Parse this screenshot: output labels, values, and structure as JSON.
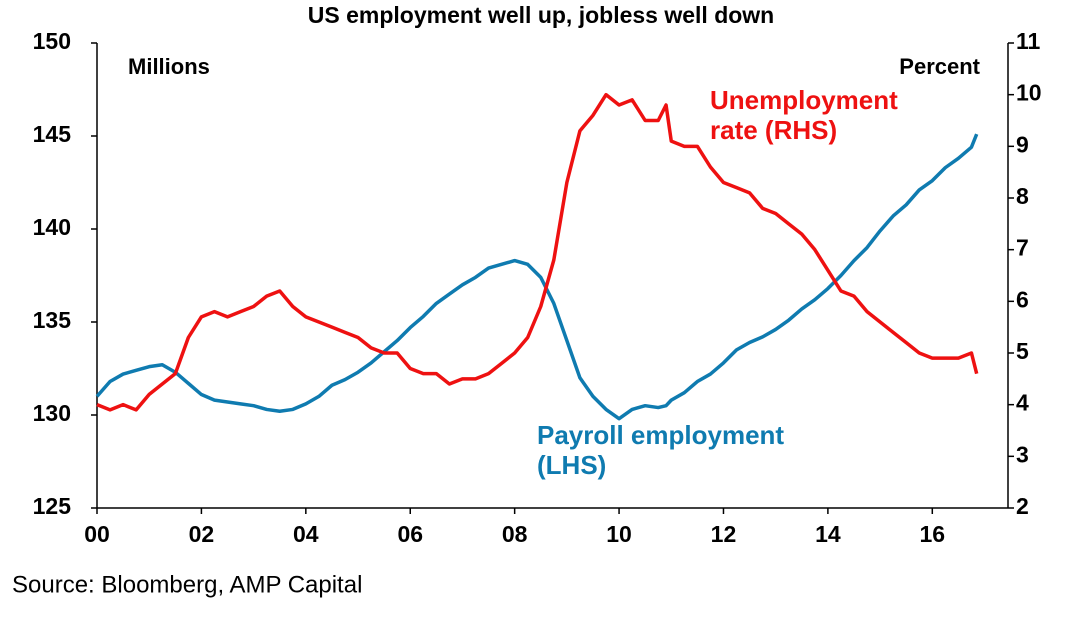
{
  "chart_data": {
    "type": "line",
    "title": "US employment well up, jobless well down",
    "y_label": "Millions",
    "y2_label": "Percent",
    "source": "Source: Bloomberg, AMP Capital",
    "x": [
      0,
      0.25,
      0.5,
      0.75,
      1,
      1.25,
      1.5,
      1.75,
      2,
      2.25,
      2.5,
      2.75,
      3,
      3.25,
      3.5,
      3.75,
      4,
      4.25,
      4.5,
      4.75,
      5,
      5.25,
      5.5,
      5.75,
      6,
      6.25,
      6.5,
      6.75,
      7,
      7.25,
      7.5,
      7.75,
      8,
      8.25,
      8.5,
      8.75,
      9,
      9.25,
      9.5,
      9.75,
      10,
      10.25,
      10.5,
      10.75,
      10.9,
      11,
      11.25,
      11.5,
      11.75,
      12,
      12.25,
      12.5,
      12.75,
      13,
      13.25,
      13.5,
      13.75,
      14,
      14.25,
      14.5,
      14.75,
      15,
      15.25,
      15.5,
      15.75,
      16,
      16.25,
      16.5,
      16.75,
      16.85
    ],
    "xlim": [
      0,
      17.45
    ],
    "xticks": [
      {
        "value": 0,
        "label": "00"
      },
      {
        "value": 2,
        "label": "02"
      },
      {
        "value": 4,
        "label": "04"
      },
      {
        "value": 6,
        "label": "06"
      },
      {
        "value": 8,
        "label": "08"
      },
      10,
      12,
      14,
      16
    ],
    "ylim": [
      125,
      150
    ],
    "yticks": [
      125,
      130,
      135,
      140,
      145,
      150
    ],
    "y2lim": [
      2,
      11
    ],
    "y2ticks": [
      2,
      3,
      4,
      5,
      6,
      7,
      8,
      9,
      10,
      11
    ],
    "series": [
      {
        "name": [
          "Payroll employment",
          "(LHS)"
        ],
        "color": "#0f7bb0",
        "axis": "y",
        "values": [
          131.0,
          131.8,
          132.2,
          132.4,
          132.6,
          132.7,
          132.3,
          131.7,
          131.1,
          130.8,
          130.7,
          130.6,
          130.5,
          130.3,
          130.2,
          130.3,
          130.6,
          131.0,
          131.6,
          131.9,
          132.3,
          132.8,
          133.4,
          134.0,
          134.7,
          135.3,
          136.0,
          136.5,
          137.0,
          137.4,
          137.9,
          138.1,
          138.3,
          138.1,
          137.4,
          136.0,
          134.0,
          132.0,
          131.0,
          130.3,
          129.8,
          130.3,
          130.5,
          130.4,
          130.5,
          130.8,
          131.2,
          131.8,
          132.2,
          132.8,
          133.5,
          133.9,
          134.2,
          134.6,
          135.1,
          135.7,
          136.2,
          136.8,
          137.5,
          138.3,
          139.0,
          139.9,
          140.7,
          141.3,
          142.1,
          142.6,
          143.3,
          143.8,
          144.4,
          145.1
        ]
      },
      {
        "name": [
          "Unemployment",
          "rate (RHS)"
        ],
        "color": "#ee1111",
        "axis": "y2",
        "values": [
          4.0,
          3.9,
          4.0,
          3.9,
          4.2,
          4.4,
          4.6,
          5.3,
          5.7,
          5.8,
          5.7,
          5.8,
          5.9,
          6.1,
          6.2,
          5.9,
          5.7,
          5.6,
          5.5,
          5.4,
          5.3,
          5.1,
          5.0,
          5.0,
          4.7,
          4.6,
          4.6,
          4.4,
          4.5,
          4.5,
          4.6,
          4.8,
          5.0,
          5.3,
          5.9,
          6.8,
          8.3,
          9.3,
          9.6,
          10.0,
          9.8,
          9.9,
          9.5,
          9.5,
          9.8,
          9.1,
          9.0,
          9.0,
          8.6,
          8.3,
          8.2,
          8.1,
          7.8,
          7.7,
          7.5,
          7.3,
          7.0,
          6.6,
          6.2,
          6.1,
          5.8,
          5.6,
          5.4,
          5.2,
          5.0,
          4.9,
          4.9,
          4.9,
          5.0,
          4.6
        ]
      }
    ]
  }
}
